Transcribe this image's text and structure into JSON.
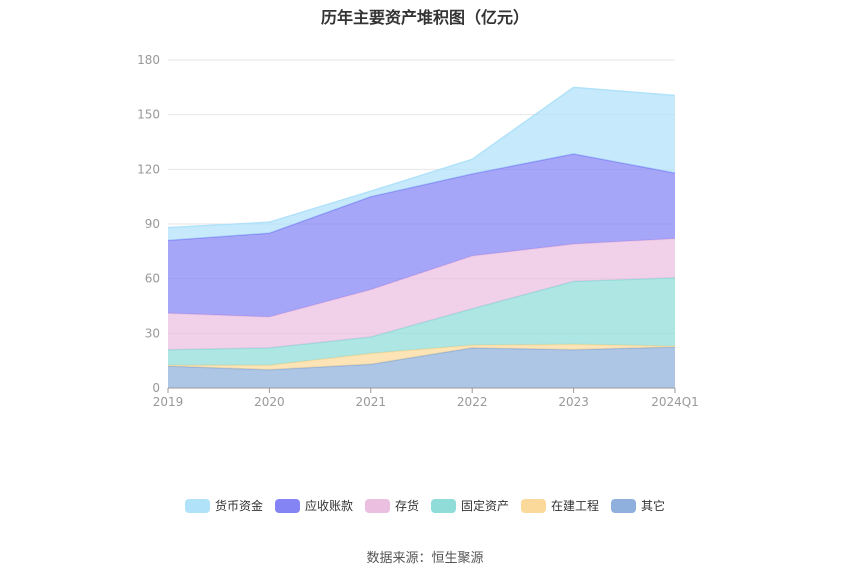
{
  "chart_data": {
    "type": "area",
    "stacked": true,
    "title": "历年主要资产堆积图（亿元）",
    "categories": [
      "2019",
      "2020",
      "2021",
      "2022",
      "2023",
      "2024Q1"
    ],
    "ylim": [
      0,
      180
    ],
    "yticks": [
      0,
      30,
      60,
      90,
      120,
      150,
      180
    ],
    "grid": true,
    "legend_position": "bottom",
    "series": [
      {
        "name": "其它",
        "color": "#8fb0dc",
        "values": [
          12,
          10,
          13,
          22,
          21,
          22.5
        ]
      },
      {
        "name": "在建工程",
        "color": "#fbd99a",
        "values": [
          0.5,
          2.5,
          6,
          1.5,
          3,
          0.5
        ]
      },
      {
        "name": "固定资产",
        "color": "#8fdcd9",
        "values": [
          8.5,
          9.5,
          9,
          20,
          34.5,
          37.5
        ]
      },
      {
        "name": "存货",
        "color": "#ebbfe0",
        "values": [
          20,
          17,
          26,
          29,
          20.5,
          21.5
        ]
      },
      {
        "name": "应收账款",
        "color": "#8484f5",
        "values": [
          40,
          46,
          51,
          45,
          49.5,
          36
        ]
      },
      {
        "name": "货币资金",
        "color": "#b0e2fa",
        "values": [
          7,
          6,
          3,
          8,
          36.5,
          42.5
        ]
      }
    ],
    "legend_order": [
      "货币资金",
      "应收账款",
      "存货",
      "固定资产",
      "在建工程",
      "其它"
    ]
  },
  "footer": {
    "source": "数据来源：恒生聚源"
  }
}
